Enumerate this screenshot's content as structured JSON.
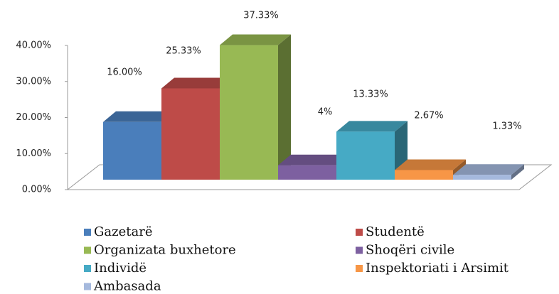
{
  "chart_data": {
    "type": "bar3d",
    "categories": [
      "Gazetarë",
      "Studentë",
      "Organizata buxhetore",
      "Shoqëri civile",
      "Individë",
      "Inspektoriati i Arsimit",
      "Ambasada"
    ],
    "values": [
      16,
      25.33,
      37.33,
      4,
      13.33,
      2.67,
      1.33
    ],
    "value_labels": [
      "16.00%",
      "25.33%",
      "37.33%",
      "4%",
      "13.33%",
      "2.67%",
      "1.33%"
    ],
    "colors": [
      "#4a7ebb",
      "#be4b48",
      "#98b954",
      "#7d60a0",
      "#46aac5",
      "#f79646",
      "#a5b9dd"
    ],
    "ylim": [
      0,
      40
    ],
    "yticks": [
      {
        "value": 0,
        "label": "0.00%"
      },
      {
        "value": 10,
        "label": "10.00%"
      },
      {
        "value": 20,
        "label": "20.00%"
      },
      {
        "value": 30,
        "label": "30.00%"
      },
      {
        "value": 40,
        "label": "40.00%"
      }
    ],
    "legend": "bottom"
  }
}
